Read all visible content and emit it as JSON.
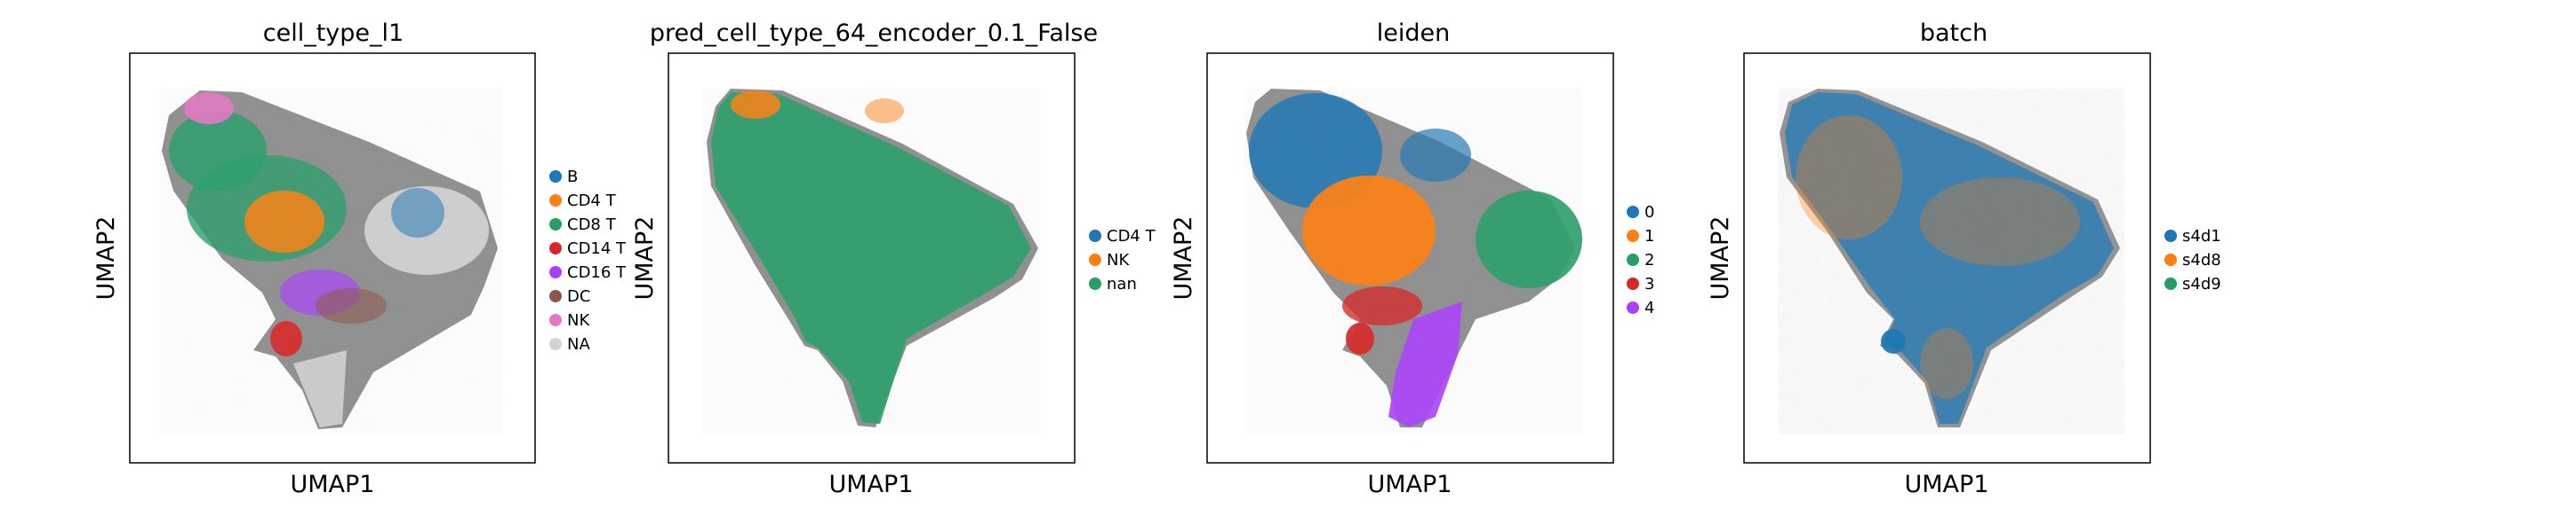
{
  "chart_data": [
    {
      "type": "scatter",
      "title": "cell_type_l1",
      "xlabel": "UMAP1",
      "ylabel": "UMAP2",
      "grid": false,
      "legend_placement": "right",
      "legend": [
        {
          "label": "B",
          "color": "#1f77b4"
        },
        {
          "label": "CD4 T",
          "color": "#ff7f0e"
        },
        {
          "label": "CD8 T",
          "color": "#279e68"
        },
        {
          "label": "CD14 T",
          "color": "#d62728"
        },
        {
          "label": "CD16 T",
          "color": "#aa40fc"
        },
        {
          "label": "DC",
          "color": "#8c564b"
        },
        {
          "label": "NK",
          "color": "#e377c2"
        },
        {
          "label": "NA",
          "color": "#d3d3d3"
        }
      ]
    },
    {
      "type": "scatter",
      "title": "pred_cell_type_64_encoder_0.1_False",
      "xlabel": "UMAP1",
      "ylabel": "UMAP2",
      "grid": false,
      "legend_placement": "right",
      "legend": [
        {
          "label": "CD4 T",
          "color": "#1f77b4"
        },
        {
          "label": "NK",
          "color": "#ff7f0e"
        },
        {
          "label": "nan",
          "color": "#279e68"
        }
      ]
    },
    {
      "type": "scatter",
      "title": "leiden",
      "xlabel": "UMAP1",
      "ylabel": "UMAP2",
      "grid": false,
      "legend_placement": "right",
      "legend": [
        {
          "label": "0",
          "color": "#1f77b4"
        },
        {
          "label": "1",
          "color": "#ff7f0e"
        },
        {
          "label": "2",
          "color": "#279e68"
        },
        {
          "label": "3",
          "color": "#d62728"
        },
        {
          "label": "4",
          "color": "#aa40fc"
        }
      ]
    },
    {
      "type": "scatter",
      "title": "batch",
      "xlabel": "UMAP1",
      "ylabel": "UMAP2",
      "grid": false,
      "legend_placement": "right",
      "legend": [
        {
          "label": "s4d1",
          "color": "#1f77b4"
        },
        {
          "label": "s4d8",
          "color": "#ff7f0e"
        },
        {
          "label": "s4d9",
          "color": "#279e68"
        }
      ]
    }
  ]
}
